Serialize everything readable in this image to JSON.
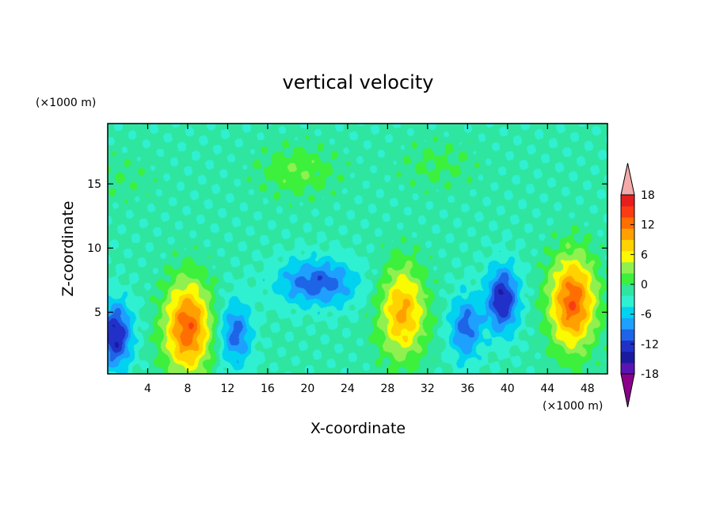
{
  "chart_data": {
    "type": "heatmap",
    "title": "vertical velocity",
    "xlabel": "X-coordinate",
    "ylabel": "Z-coordinate",
    "x_unit": "(×1000 m)",
    "y_unit": "(×1000 m)",
    "xlim": [
      0,
      50
    ],
    "ylim": [
      0.2,
      19.7
    ],
    "xticks": [
      4,
      8,
      12,
      16,
      20,
      24,
      28,
      32,
      36,
      40,
      44,
      48
    ],
    "yticks": [
      5,
      10,
      15
    ],
    "colorbar": {
      "ticks": [
        18,
        12,
        6,
        0,
        -6,
        -12,
        -18
      ],
      "levels": [
        -21,
        -18,
        -15,
        -12,
        -9,
        -6,
        -3,
        0,
        3,
        6,
        9,
        12,
        15,
        18,
        21
      ],
      "colors": [
        "#8b008b",
        "#5a14b4",
        "#1a1aa0",
        "#2030c8",
        "#1e64e6",
        "#1ea0ff",
        "#00d2f0",
        "#30f0d2",
        "#2ee6a0",
        "#3cf03c",
        "#90f050",
        "#fafa00",
        "#ffd200",
        "#ffa000",
        "#ff6e00",
        "#fa3c14",
        "#e61e1e",
        "#f5aaaa"
      ],
      "extend": "both"
    },
    "features": [
      {
        "name": "updraft",
        "x": 8,
        "z": 3.8,
        "value": 20
      },
      {
        "name": "updraft",
        "x": 29.5,
        "z": 5,
        "value": 15
      },
      {
        "name": "updraft",
        "x": 46.5,
        "z": 5.8,
        "value": 20
      },
      {
        "name": "downdraft",
        "x": 0.8,
        "z": 3.2,
        "value": -16
      },
      {
        "name": "downdraft",
        "x": 12.8,
        "z": 3.3,
        "value": -11
      },
      {
        "name": "downdraft",
        "x": 21,
        "z": 7.3,
        "value": -12
      },
      {
        "name": "downdraft",
        "x": 35.8,
        "z": 3.8,
        "value": -11
      },
      {
        "name": "downdraft",
        "x": 39.5,
        "z": 6,
        "value": -16
      },
      {
        "name": "weak-updraft",
        "x": 19,
        "z": 16,
        "value": 5
      },
      {
        "name": "weak-updraft",
        "x": 33,
        "z": 16.5,
        "value": 3
      },
      {
        "name": "weak-updraft",
        "x": 1,
        "z": 15.5,
        "value": 2
      }
    ]
  }
}
